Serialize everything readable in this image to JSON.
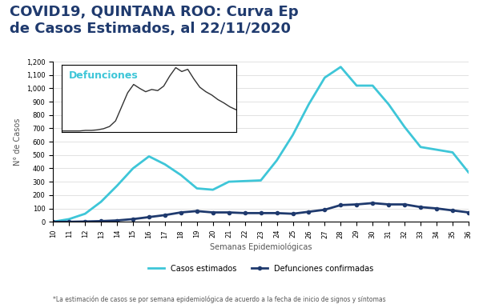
{
  "chart_data": [
    {
      "type": "line",
      "title": "COVID19, QUINTANA ROO: Curva Ep\nde Casos Estimados, al 22/11/2020",
      "x_label": "Semanas Epidemiológicas",
      "y_label": "N° de Casos",
      "note": "*La estimación de casos se por semana epidemiológica de acuerdo a la fecha de inicio de signos y síntomas",
      "x": [
        10,
        11,
        12,
        13,
        14,
        15,
        16,
        17,
        18,
        19,
        20,
        21,
        22,
        23,
        24,
        25,
        26,
        27,
        28,
        29,
        30,
        31,
        32,
        33,
        34,
        35,
        36
      ],
      "series": [
        {
          "name": "Casos estimados",
          "color": "#3ec6d8",
          "marker": "none",
          "line_style": "solid",
          "values": [
            0,
            20,
            60,
            150,
            270,
            400,
            490,
            430,
            350,
            250,
            240,
            300,
            305,
            310,
            460,
            650,
            880,
            1080,
            1160,
            1020,
            1020,
            880,
            710,
            560,
            540,
            520,
            370
          ]
        },
        {
          "name": "Defunciones confirmadas",
          "color": "#1f3a6e",
          "marker": "o",
          "line_style": "solid",
          "values": [
            0,
            0,
            2,
            5,
            10,
            20,
            35,
            50,
            70,
            80,
            70,
            70,
            65,
            65,
            65,
            60,
            75,
            90,
            125,
            130,
            140,
            130,
            130,
            110,
            100,
            85,
            70
          ]
        }
      ],
      "xlim": [
        10,
        36
      ],
      "xticks": [
        10,
        11,
        12,
        13,
        14,
        15,
        16,
        17,
        18,
        19,
        20,
        21,
        22,
        23,
        24,
        25,
        26,
        27,
        28,
        29,
        30,
        31,
        32,
        33,
        34,
        35,
        36
      ],
      "ylim": [
        0,
        1200
      ],
      "yticks": [
        0,
        100,
        200,
        300,
        400,
        500,
        600,
        700,
        800,
        900,
        {
          "value": 1000,
          "label": "1,000"
        },
        {
          "value": 1100,
          "label": "1,100"
        },
        {
          "value": 1200,
          "label": "1,200"
        }
      ],
      "grid": true,
      "legend": "lower center"
    },
    {
      "type": "line",
      "title": "Defunciones",
      "x": [
        1,
        2,
        3,
        4,
        5,
        6,
        7,
        8,
        9,
        10,
        11,
        12,
        13,
        14,
        15,
        16,
        17,
        18,
        19,
        20,
        21,
        22,
        23,
        24,
        25,
        26,
        27,
        28,
        29,
        30
      ],
      "series": [
        {
          "name": "Defunciones",
          "color": "#3ec6d8",
          "values": [
            2,
            2,
            2,
            2,
            3,
            3,
            4,
            6,
            10,
            20,
            45,
            70,
            85,
            78,
            72,
            76,
            74,
            82,
            100,
            115,
            108,
            112,
            95,
            80,
            72,
            66,
            58,
            52,
            45,
            40
          ]
        }
      ],
      "xlim": [
        1,
        30
      ],
      "ylim": [
        0,
        120
      ],
      "tick_labels": false
    }
  ]
}
